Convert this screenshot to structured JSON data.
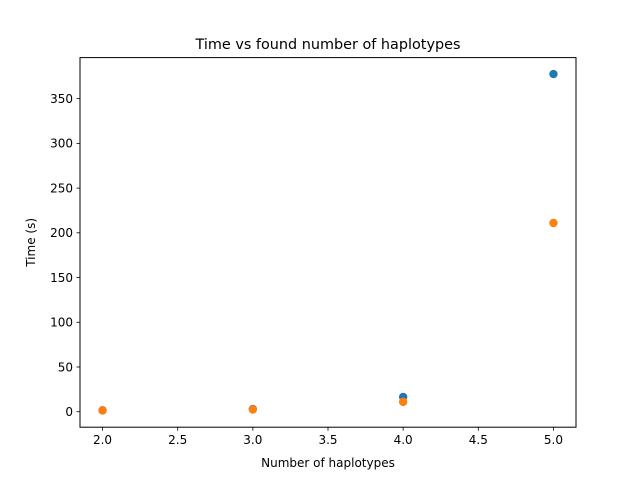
{
  "chart_data": {
    "type": "scatter",
    "title": "Time vs found number of haplotypes",
    "xlabel": "Number of haplotypes",
    "ylabel": "Time (s)",
    "xlim": [
      1.85,
      5.15
    ],
    "ylim": [
      -17.3,
      395.9
    ],
    "xticks": [
      2.0,
      2.5,
      3.0,
      3.5,
      4.0,
      4.5,
      5.0
    ],
    "xtick_labels": [
      "2.0",
      "2.5",
      "3.0",
      "3.5",
      "4.0",
      "4.5",
      "5.0"
    ],
    "yticks": [
      0,
      50,
      100,
      150,
      200,
      250,
      300,
      350
    ],
    "ytick_labels": [
      "0",
      "50",
      "100",
      "150",
      "200",
      "250",
      "300",
      "350"
    ],
    "grid": false,
    "series": [
      {
        "color": "#1f77b4",
        "points": [
          {
            "x": 2.0,
            "y": 1.5
          },
          {
            "x": 3.0,
            "y": 3.0
          },
          {
            "x": 4.0,
            "y": 16.5
          },
          {
            "x": 5.0,
            "y": 377.5
          }
        ]
      },
      {
        "color": "#ff7f0e",
        "points": [
          {
            "x": 2.0,
            "y": 1.5
          },
          {
            "x": 3.0,
            "y": 2.5
          },
          {
            "x": 4.0,
            "y": 11.0
          },
          {
            "x": 5.0,
            "y": 211.0
          }
        ]
      }
    ]
  }
}
